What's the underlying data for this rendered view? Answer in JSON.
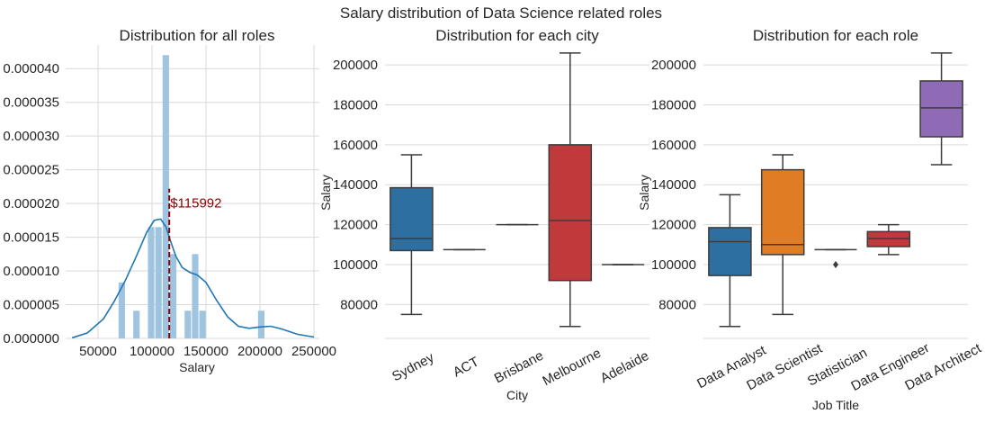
{
  "chart_data": {
    "suptitle": "Salary distribution of Data Science related roles",
    "panels": [
      {
        "type": "histogram",
        "title": "Distribution for all roles",
        "xlabel": "Salary",
        "ylabel": "",
        "xlim": [
          20000,
          255000
        ],
        "ylim": [
          0,
          4.35e-05
        ],
        "xticks": [
          50000,
          100000,
          150000,
          200000,
          250000
        ],
        "yticks": [
          0,
          5e-06,
          1e-05,
          1.5e-05,
          2e-05,
          2.5e-05,
          3e-05,
          3.5e-05,
          4e-05
        ],
        "ytick_labels": [
          "0.000000",
          "0.000005",
          "0.000010",
          "0.000015",
          "0.000020",
          "0.000025",
          "0.000030",
          "0.000035",
          "0.000040"
        ],
        "bar_color": "#9ec4e0",
        "bins": [
          {
            "x0": 69000,
            "x1": 75800,
            "h": 8.3e-06
          },
          {
            "x0": 82600,
            "x1": 89400,
            "h": 4.1e-06
          },
          {
            "x0": 96200,
            "x1": 103000,
            "h": 1.65e-05
          },
          {
            "x0": 103000,
            "x1": 109800,
            "h": 1.65e-05
          },
          {
            "x0": 109800,
            "x1": 116600,
            "h": 4.2e-05
          },
          {
            "x0": 116600,
            "x1": 123400,
            "h": 1.25e-05
          },
          {
            "x0": 130200,
            "x1": 137000,
            "h": 4.1e-06
          },
          {
            "x0": 137000,
            "x1": 143800,
            "h": 1.25e-05
          },
          {
            "x0": 143800,
            "x1": 150600,
            "h": 4.1e-06
          },
          {
            "x0": 198200,
            "x1": 205000,
            "h": 4.1e-06
          }
        ],
        "kde": {
          "color": "#1f77b4",
          "x": [
            26000,
            40000,
            55000,
            65000,
            75000,
            85000,
            95000,
            102000,
            108000,
            113000,
            117000,
            122000,
            128000,
            135000,
            142000,
            150000,
            160000,
            170000,
            180000,
            190000,
            200000,
            210000,
            220000,
            235000,
            250000
          ],
          "y": [
            1e-07,
            8e-07,
            2.9e-06,
            5.5e-06,
            8.5e-06,
            1.2e-05,
            1.57e-05,
            1.75e-05,
            1.77e-05,
            1.65e-05,
            1.45e-05,
            1.22e-05,
            1.05e-05,
            9.8e-06,
            9.4e-06,
            8.3e-06,
            5.6e-06,
            3.2e-06,
            1.8e-06,
            1.5e-06,
            1.7e-06,
            1.8e-06,
            1.4e-06,
            6e-07,
            2e-07
          ]
        },
        "mean_line": {
          "x": 115992,
          "y_top": 2.22e-05,
          "color": "#8b0000",
          "label": "$115992"
        }
      },
      {
        "type": "boxplot",
        "title": "Distribution for each city",
        "xlabel": "City",
        "ylabel": "Salary",
        "ylim": [
          63000,
          210000
        ],
        "yticks": [
          80000,
          100000,
          120000,
          140000,
          160000,
          180000,
          200000
        ],
        "categories": [
          "Sydney",
          "ACT",
          "Brisbane",
          "Melbourne",
          "Adelaide"
        ],
        "boxes": [
          {
            "q1": 107000,
            "med": 113000,
            "q3": 138500,
            "wlo": 75000,
            "whi": 155000,
            "color": "#2e6fa1",
            "outliers": []
          },
          {
            "q1": 107500,
            "med": 107500,
            "q3": 107500,
            "wlo": 107500,
            "whi": 107500,
            "color": "#e07c24",
            "outliers": []
          },
          {
            "q1": 120000,
            "med": 120000,
            "q3": 120000,
            "wlo": 120000,
            "whi": 120000,
            "color": "#3a913a",
            "outliers": []
          },
          {
            "q1": 92000,
            "med": 122000,
            "q3": 160000,
            "wlo": 69000,
            "whi": 206000,
            "color": "#c0393b",
            "outliers": []
          },
          {
            "q1": 100000,
            "med": 100000,
            "q3": 100000,
            "wlo": 100000,
            "whi": 100000,
            "color": "#8f6bb5",
            "outliers": []
          }
        ]
      },
      {
        "type": "boxplot",
        "title": "Distribution for each role",
        "xlabel": "Job Title",
        "ylabel": "Salary",
        "ylim": [
          63000,
          210000
        ],
        "yticks": [
          80000,
          100000,
          120000,
          140000,
          160000,
          180000,
          200000
        ],
        "categories": [
          "Data Analyst",
          "Data Scientist",
          "Statistician",
          "Data Engineer",
          "Data Architect"
        ],
        "boxes": [
          {
            "q1": 94500,
            "med": 111500,
            "q3": 118500,
            "wlo": 69000,
            "whi": 135000,
            "color": "#2e6fa1",
            "outliers": []
          },
          {
            "q1": 105000,
            "med": 110000,
            "q3": 147500,
            "wlo": 75000,
            "whi": 155000,
            "color": "#e07c24",
            "outliers": []
          },
          {
            "q1": 107500,
            "med": 107500,
            "q3": 107500,
            "wlo": 107500,
            "whi": 107500,
            "color": "#3a913a",
            "outliers": [
              100000
            ]
          },
          {
            "q1": 109000,
            "med": 113000,
            "q3": 116500,
            "wlo": 105000,
            "whi": 120000,
            "color": "#c0393b",
            "outliers": []
          },
          {
            "q1": 164000,
            "med": 178500,
            "q3": 192000,
            "wlo": 150000,
            "whi": 206000,
            "color": "#8f6bb5",
            "outliers": []
          }
        ]
      }
    ]
  }
}
